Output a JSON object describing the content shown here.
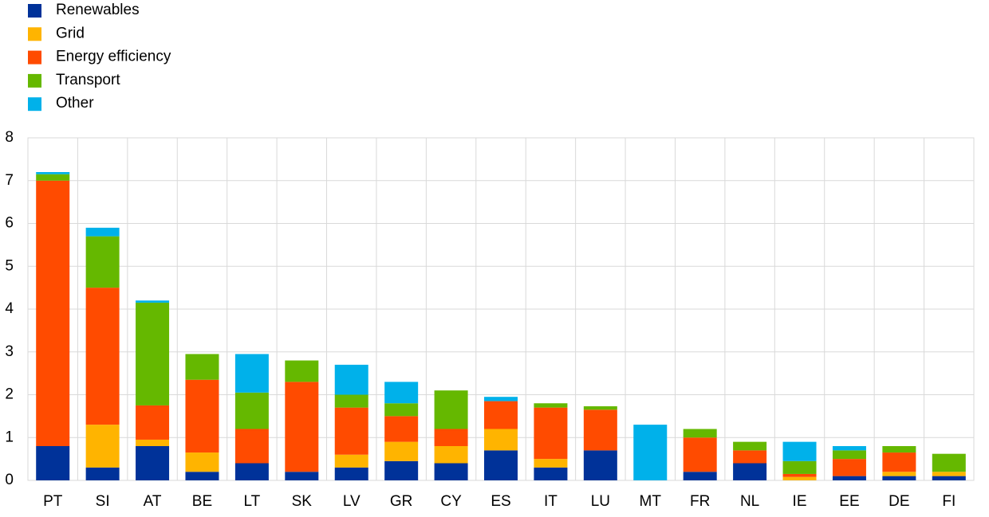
{
  "chart_data": {
    "type": "stacked_bar",
    "categories": [
      "PT",
      "SI",
      "AT",
      "BE",
      "LT",
      "SK",
      "LV",
      "GR",
      "CY",
      "ES",
      "IT",
      "LU",
      "MT",
      "FR",
      "NL",
      "IE",
      "EE",
      "DE",
      "FI"
    ],
    "series": [
      {
        "name": "Renewables",
        "color": "#003299",
        "values": [
          0.8,
          0.3,
          0.8,
          0.2,
          0.4,
          0.2,
          0.3,
          0.45,
          0.4,
          0.7,
          0.3,
          0.7,
          0,
          0.2,
          0.4,
          0,
          0.1,
          0.1,
          0.1
        ]
      },
      {
        "name": "Grid",
        "color": "#ffb400",
        "values": [
          0,
          1.0,
          0.15,
          0.45,
          0,
          0,
          0.3,
          0.45,
          0.4,
          0.5,
          0.2,
          0,
          0,
          0,
          0,
          0.08,
          0,
          0.1,
          0.1
        ]
      },
      {
        "name": "Energy efficiency",
        "color": "#ff4b00",
        "values": [
          6.2,
          3.2,
          0.8,
          1.7,
          0.8,
          2.1,
          1.1,
          0.6,
          0.4,
          0.65,
          1.2,
          0.95,
          0,
          0.8,
          0.3,
          0.07,
          0.4,
          0.45,
          0
        ]
      },
      {
        "name": "Transport",
        "color": "#65b800",
        "values": [
          0.15,
          1.2,
          2.4,
          0.6,
          0.85,
          0.5,
          0.3,
          0.3,
          0.9,
          0,
          0.1,
          0.08,
          0,
          0.2,
          0.2,
          0.3,
          0.2,
          0.15,
          0.42
        ]
      },
      {
        "name": "Other",
        "color": "#00b1ea",
        "values": [
          0.05,
          0.2,
          0.05,
          0,
          0.9,
          0,
          0.7,
          0.5,
          0,
          0.1,
          0,
          0,
          1.3,
          0,
          0,
          0.45,
          0.1,
          0,
          0
        ]
      }
    ],
    "ylim": [
      0,
      8
    ],
    "yticks": [
      0,
      1,
      2,
      3,
      4,
      5,
      6,
      7,
      8
    ],
    "grid": true
  }
}
